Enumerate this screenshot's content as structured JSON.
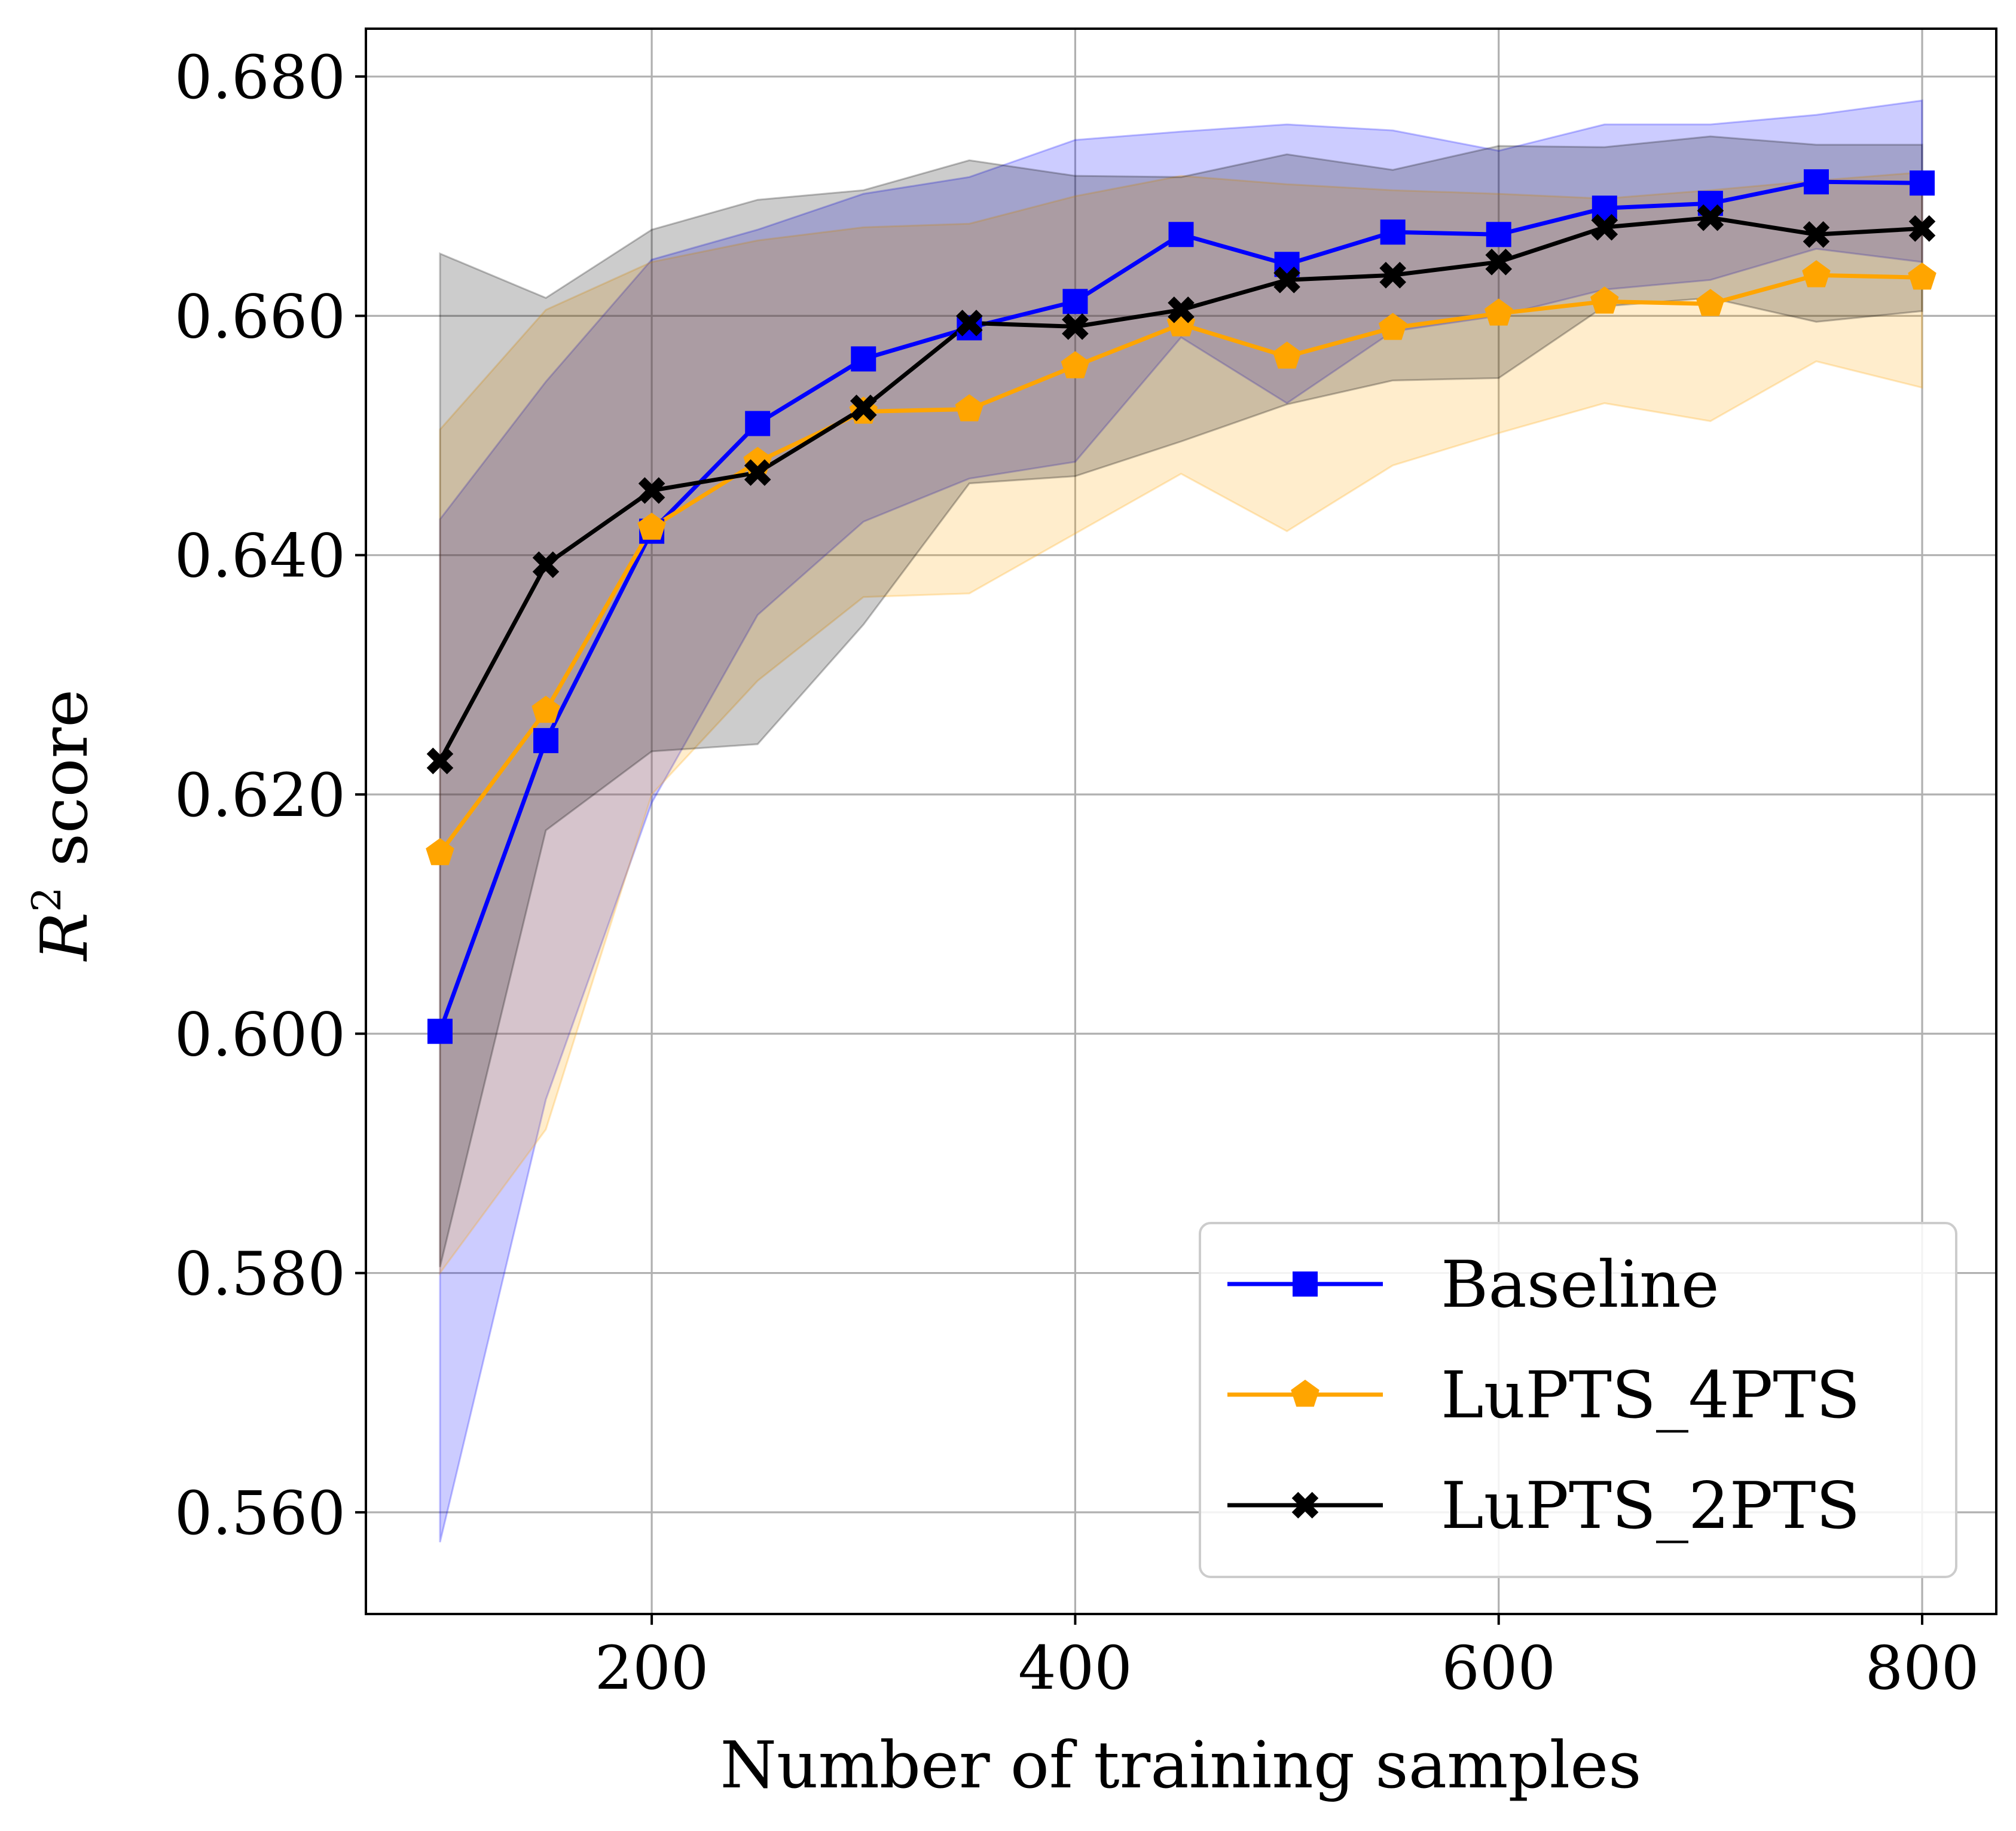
{
  "chart_data": {
    "type": "line",
    "title": "",
    "xlabel": "Number of training samples",
    "ylabel_main": "R",
    "ylabel_sup": "2",
    "ylabel_rest": " score",
    "xlim": [
      65,
      835
    ],
    "ylim": [
      0.5515,
      0.684
    ],
    "x_ticks": [
      200,
      400,
      600,
      800
    ],
    "x_tick_labels": [
      "200",
      "400",
      "600",
      "800"
    ],
    "y_ticks": [
      0.56,
      0.58,
      0.6,
      0.62,
      0.64,
      0.66,
      0.68
    ],
    "y_tick_labels": [
      "0.560",
      "0.580",
      "0.600",
      "0.620",
      "0.640",
      "0.660",
      "0.680"
    ],
    "grid": true,
    "legend_position": "bottom-right",
    "x": [
      100,
      150,
      200,
      250,
      300,
      350,
      400,
      450,
      500,
      550,
      600,
      650,
      700,
      750,
      800
    ],
    "series": [
      {
        "name": "Baseline",
        "color": "#0000ff",
        "marker": "square",
        "values": [
          0.6002,
          0.6245,
          0.642,
          0.651,
          0.6564,
          0.659,
          0.6612,
          0.6668,
          0.6643,
          0.667,
          0.6668,
          0.669,
          0.6694,
          0.6712,
          0.6711
        ],
        "upper": [
          0.643,
          0.6545,
          0.6647,
          0.6672,
          0.6702,
          0.6716,
          0.6747,
          0.6754,
          0.676,
          0.6755,
          0.6738,
          0.676,
          0.676,
          0.6768,
          0.678
        ],
        "lower": [
          0.5575,
          0.5945,
          0.6193,
          0.635,
          0.6428,
          0.6464,
          0.6478,
          0.6582,
          0.6527,
          0.6587,
          0.66,
          0.6622,
          0.663,
          0.6656,
          0.6645
        ]
      },
      {
        "name": "LuPTS_4PTS",
        "color": "#ffa500",
        "marker": "pentagon",
        "values": [
          0.6151,
          0.627,
          0.6423,
          0.6478,
          0.652,
          0.6522,
          0.6558,
          0.6593,
          0.6566,
          0.659,
          0.6602,
          0.6612,
          0.661,
          0.6634,
          0.6632
        ],
        "upper": [
          0.6505,
          0.6605,
          0.6645,
          0.6663,
          0.6674,
          0.6677,
          0.67,
          0.6717,
          0.671,
          0.6705,
          0.6702,
          0.6698,
          0.6705,
          0.6713,
          0.672
        ],
        "lower": [
          0.58,
          0.592,
          0.62,
          0.6295,
          0.6365,
          0.6368,
          0.6418,
          0.6468,
          0.642,
          0.6475,
          0.6502,
          0.6527,
          0.6512,
          0.6562,
          0.654
        ]
      },
      {
        "name": "LuPTS_2PTS",
        "color": "#000000",
        "marker": "x",
        "values": [
          0.6228,
          0.6392,
          0.6454,
          0.6469,
          0.6523,
          0.6594,
          0.6591,
          0.6605,
          0.663,
          0.6634,
          0.6645,
          0.6674,
          0.6682,
          0.6668,
          0.6673
        ],
        "upper": [
          0.6652,
          0.6615,
          0.6672,
          0.6697,
          0.6705,
          0.673,
          0.6717,
          0.6716,
          0.6735,
          0.6722,
          0.6742,
          0.6741,
          0.675,
          0.6743,
          0.6743
        ],
        "lower": [
          0.5805,
          0.617,
          0.6236,
          0.6242,
          0.6342,
          0.646,
          0.6466,
          0.6495,
          0.6526,
          0.6546,
          0.6548,
          0.6608,
          0.6615,
          0.6595,
          0.6604
        ]
      }
    ]
  }
}
